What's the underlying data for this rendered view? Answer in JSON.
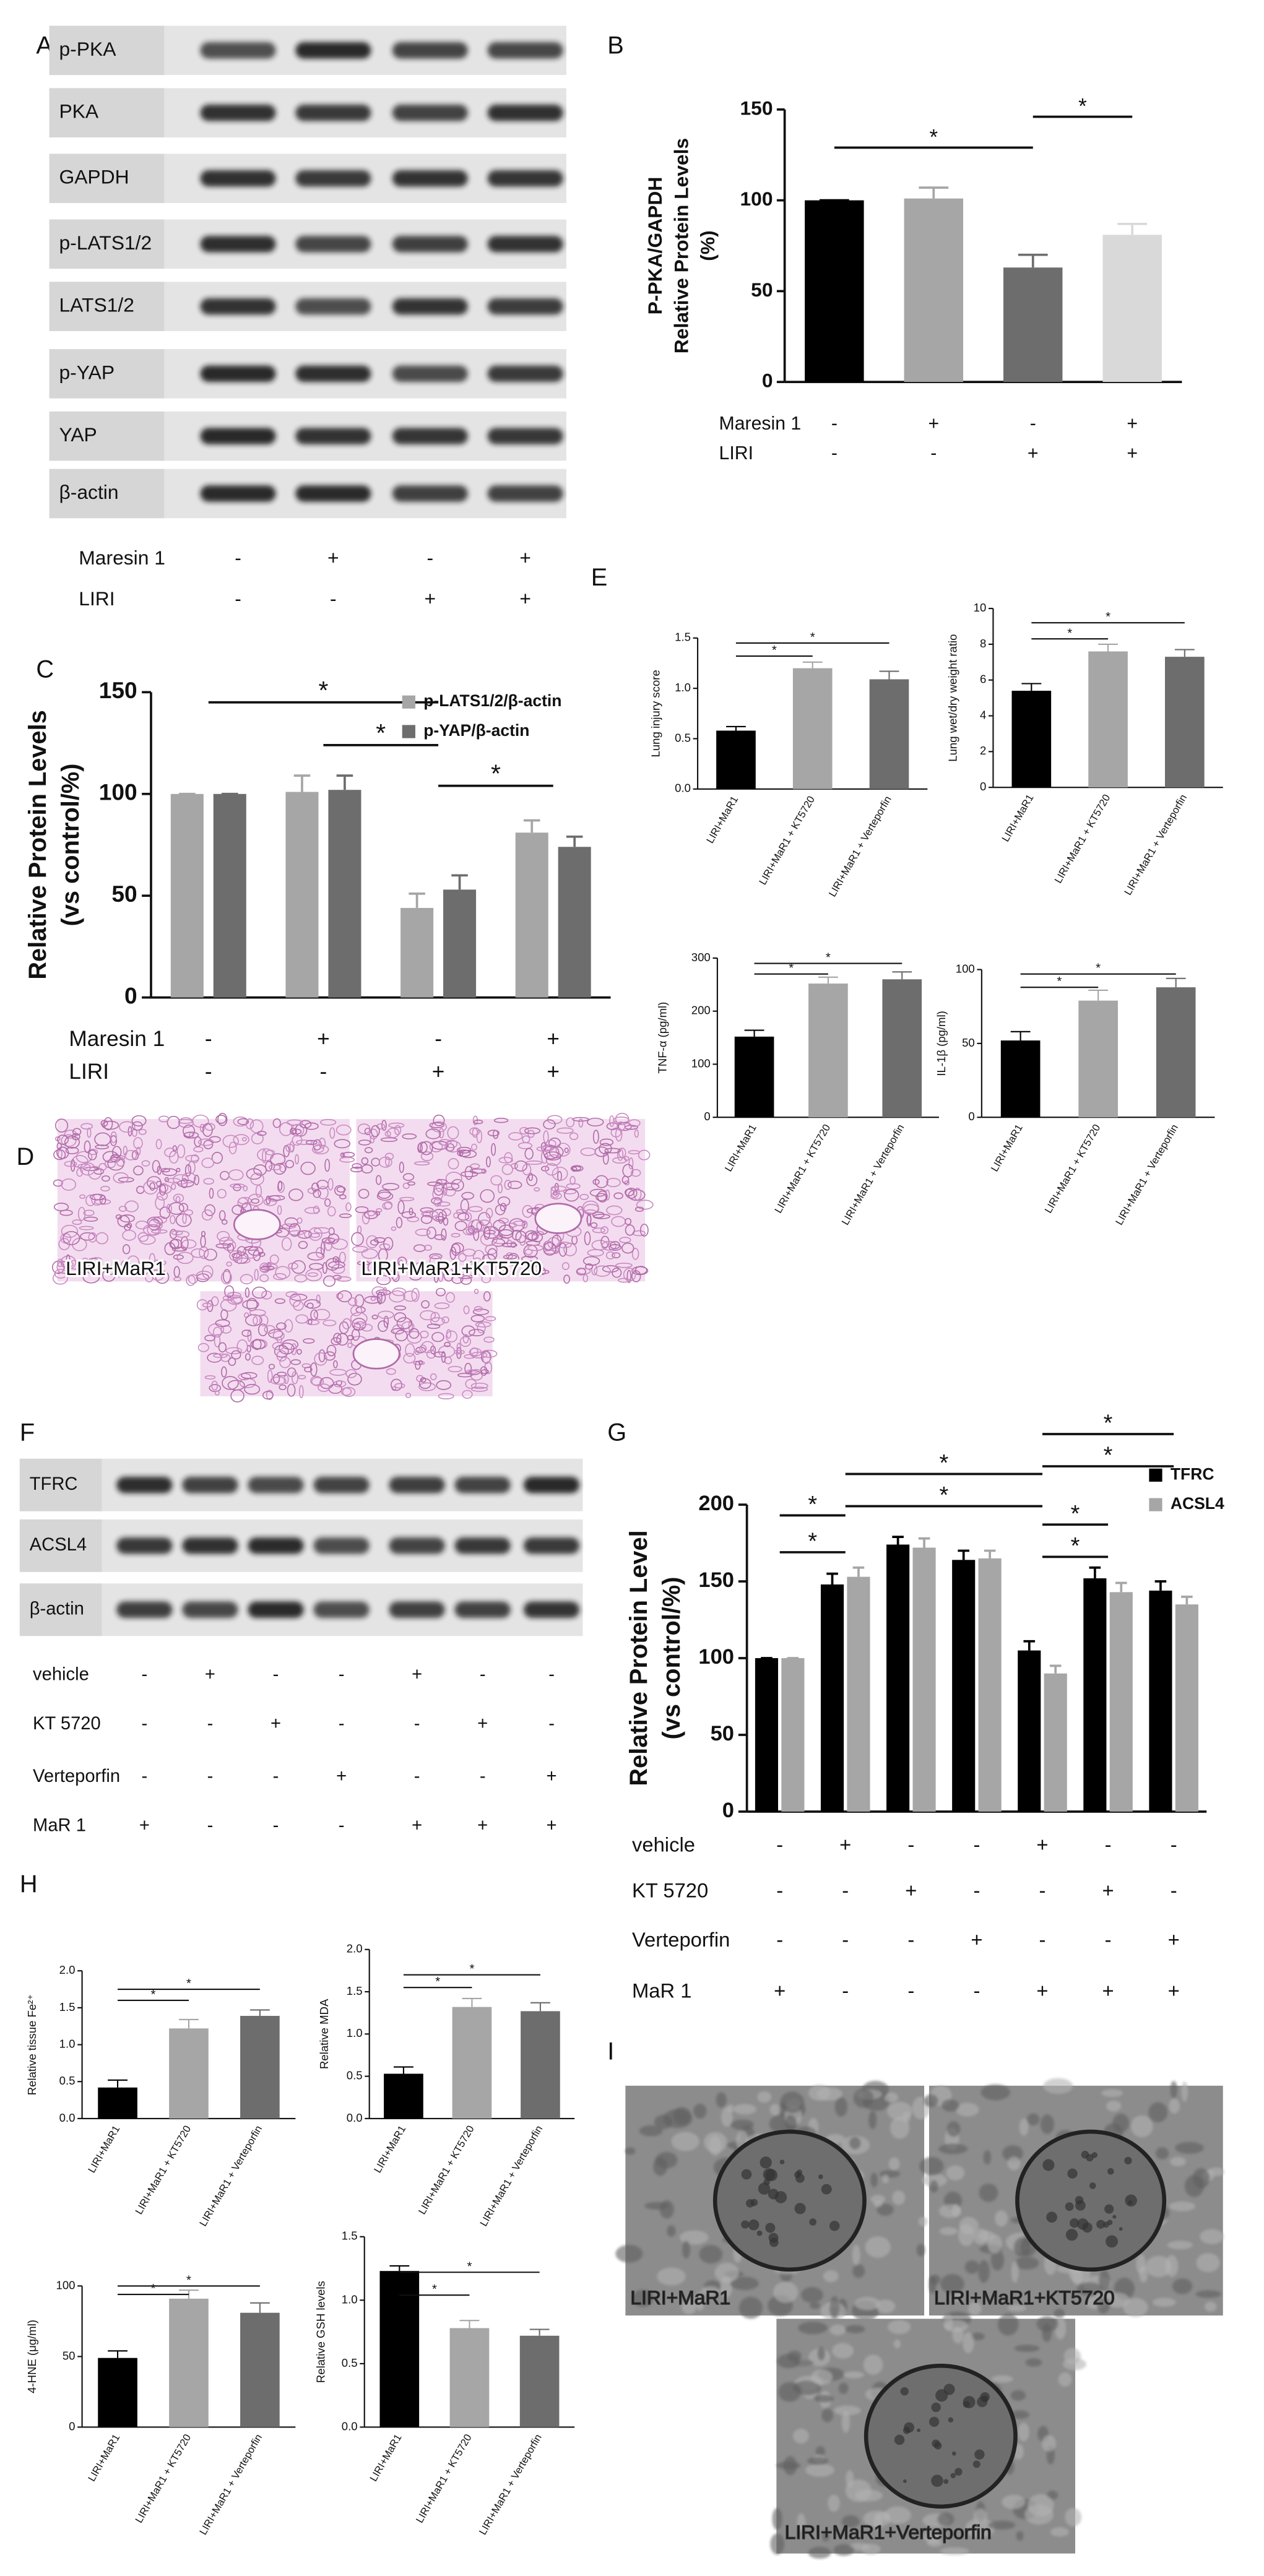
{
  "panel_labels": [
    "A",
    "B",
    "C",
    "D",
    "E",
    "F",
    "G",
    "H",
    "I"
  ],
  "blot_a": {
    "rows": [
      "p-PKA",
      "PKA",
      "GAPDH",
      "p-LATS1/2",
      "LATS1/2",
      "p-YAP",
      "YAP",
      "β-actin"
    ],
    "conditions": [
      {
        "name": "Maresin 1",
        "signs": [
          "-",
          "+",
          "-",
          "+"
        ]
      },
      {
        "name": "LIRI",
        "signs": [
          "-",
          "-",
          "+",
          "+"
        ]
      }
    ]
  },
  "blot_f": {
    "rows": [
      "TFRC",
      "ACSL4",
      "β-actin"
    ],
    "conditions": [
      {
        "name": "vehicle",
        "signs": [
          "-",
          "+",
          "-",
          "-",
          "+",
          "-",
          "-"
        ]
      },
      {
        "name": "KT 5720",
        "signs": [
          "-",
          "-",
          "+",
          "-",
          "-",
          "+",
          "-"
        ]
      },
      {
        "name": "Verteporfin",
        "signs": [
          "-",
          "-",
          "-",
          "+",
          "-",
          "-",
          "+"
        ]
      },
      {
        "name": "MaR 1",
        "signs": [
          "+",
          "-",
          "-",
          "-",
          "+",
          "+",
          "+"
        ]
      }
    ]
  },
  "micrographs_d": {
    "labels": [
      "LIRI+MaR1",
      "LIRI+MaR1+KT5720"
    ]
  },
  "micrographs_i": {
    "labels": [
      "LIRI+MaR1",
      "LIRI+MaR1+KT5720",
      "LIRI+MaR1+Verteporfin"
    ]
  },
  "chart_data": [
    {
      "type": "bar",
      "ylabel": [
        "P-PKA/GAPDH",
        "Relative Protein Levels",
        "(%)"
      ],
      "categories": [
        null,
        null,
        null,
        null
      ],
      "values": [
        100,
        101,
        63,
        81
      ],
      "errors": [
        0,
        6,
        7,
        6
      ],
      "colors": [
        "#000000",
        "#a6a6a6",
        "#6d6d6d",
        "#d9d9d9"
      ],
      "ylim": [
        0,
        150
      ],
      "yticks": [
        0,
        50,
        100,
        150
      ],
      "annotations": [
        {
          "text": "*",
          "span": [
            0,
            2
          ],
          "y": 129
        },
        {
          "text": "*",
          "span": [
            2,
            3
          ],
          "y": 146
        }
      ],
      "conditions": [
        {
          "name": "Maresin 1",
          "signs": [
            "-",
            "+",
            "-",
            "+"
          ]
        },
        {
          "name": "LIRI",
          "signs": [
            "-",
            "-",
            "+",
            "+"
          ]
        }
      ]
    },
    {
      "type": "bar",
      "ylabel": [
        "Relative Protein Levels",
        "(vs control/%)"
      ],
      "categories": [
        null,
        null,
        null,
        null
      ],
      "series": [
        {
          "name": "p-LATS1/2/β-actin",
          "color": "#a6a6a6",
          "values": [
            100,
            101,
            44,
            81
          ],
          "errors": [
            0,
            8,
            7,
            6
          ]
        },
        {
          "name": "p-YAP/β-actin",
          "color": "#6d6d6d",
          "values": [
            100,
            102,
            53,
            74
          ],
          "errors": [
            0,
            7,
            7,
            5
          ]
        }
      ],
      "legend": "upper right",
      "ylim": [
        0,
        150
      ],
      "yticks": [
        0,
        50,
        100,
        150
      ],
      "annotations": [
        {
          "text": "*",
          "span": [
            0,
            2
          ],
          "y": 145
        },
        {
          "text": "*",
          "span": [
            1,
            2
          ],
          "y": 124
        },
        {
          "text": "*",
          "span": [
            2,
            3
          ],
          "y": 104
        }
      ],
      "conditions": [
        {
          "name": "Maresin 1",
          "signs": [
            "-",
            "+",
            "-",
            "+"
          ]
        },
        {
          "name": "LIRI",
          "signs": [
            "-",
            "-",
            "+",
            "+"
          ]
        }
      ]
    },
    {
      "type": "bar",
      "ylabel": "Lung injury score",
      "categories": [
        "LIRI+MaR1",
        "LIRI+MaR1 + KT5720",
        "LIRI+MaR1 + Verteporfin"
      ],
      "values": [
        0.58,
        1.2,
        1.09
      ],
      "errors": [
        0.04,
        0.06,
        0.08
      ],
      "colors": [
        "#000000",
        "#a6a6a6",
        "#6d6d6d"
      ],
      "ylim": [
        0,
        1.5
      ],
      "yticks": [
        {
          "value": 0,
          "label": "0.0"
        },
        0.5,
        {
          "value": 1,
          "label": "1.0"
        },
        1.5
      ],
      "annotations": [
        {
          "text": "*",
          "span": [
            0,
            1
          ],
          "y": 1.32
        },
        {
          "text": "*",
          "span": [
            0,
            2
          ],
          "y": 1.45
        }
      ]
    },
    {
      "type": "bar",
      "ylabel": "Lung wet/dry weight ratio",
      "categories": [
        "LIRI+MaR1",
        "LIRI+MaR1 + KT5720",
        "LIRI+MaR1 + Verteporfin"
      ],
      "values": [
        5.4,
        7.6,
        7.3
      ],
      "errors": [
        0.4,
        0.4,
        0.4
      ],
      "colors": [
        "#000000",
        "#a6a6a6",
        "#6d6d6d"
      ],
      "ylim": [
        0,
        10
      ],
      "yticks": [
        0,
        2,
        4,
        6,
        8,
        10
      ],
      "annotations": [
        {
          "text": "*",
          "span": [
            0,
            1
          ],
          "y": 8.3
        },
        {
          "text": "*",
          "span": [
            0,
            2
          ],
          "y": 9.2
        }
      ]
    },
    {
      "type": "bar",
      "ylabel": "TNF-α (pg/ml)",
      "categories": [
        "LIRI+MaR1",
        "LIRI+MaR1 + KT5720",
        "LIRI+MaR1 + Verteporfin"
      ],
      "values": [
        152,
        252,
        260
      ],
      "errors": [
        12,
        12,
        14
      ],
      "colors": [
        "#000000",
        "#a6a6a6",
        "#6d6d6d"
      ],
      "ylim": [
        0,
        300
      ],
      "yticks": [
        0,
        100,
        200,
        300
      ],
      "annotations": [
        {
          "text": "*",
          "span": [
            0,
            1
          ],
          "y": 270
        },
        {
          "text": "*",
          "span": [
            0,
            2
          ],
          "y": 290
        }
      ]
    },
    {
      "type": "bar",
      "ylabel": "IL-1β (pg/ml)",
      "categories": [
        "LIRI+MaR1",
        "LIRI+MaR1 + KT5720",
        "LIRI+MaR1 + Verteporfin"
      ],
      "values": [
        52,
        79,
        88
      ],
      "errors": [
        6,
        7,
        6
      ],
      "colors": [
        "#000000",
        "#a6a6a6",
        "#6d6d6d"
      ],
      "ylim": [
        0,
        100
      ],
      "yticks": [
        0,
        50,
        100
      ],
      "annotations": [
        {
          "text": "*",
          "span": [
            0,
            1
          ],
          "y": 88
        },
        {
          "text": "*",
          "span": [
            0,
            2
          ],
          "y": 97
        }
      ]
    },
    {
      "type": "bar",
      "ylabel": [
        "Relative Protein Level",
        "(vs control/%)"
      ],
      "categories": [
        null,
        null,
        null,
        null,
        null,
        null,
        null
      ],
      "series": [
        {
          "name": "TFRC",
          "color": "#000000",
          "values": [
            100,
            148,
            174,
            164,
            105,
            152,
            144
          ],
          "errors": [
            0,
            7,
            5,
            6,
            6,
            7,
            6
          ]
        },
        {
          "name": "ACSL4",
          "color": "#a6a6a6",
          "values": [
            100,
            153,
            172,
            165,
            90,
            143,
            135
          ],
          "errors": [
            0,
            6,
            6,
            5,
            5,
            6,
            5
          ]
        }
      ],
      "legend": "upper right",
      "ylim": [
        0,
        200
      ],
      "yticks": [
        0,
        50,
        100,
        150,
        200
      ],
      "annotations": [
        {
          "text": "*",
          "span": [
            0,
            1
          ],
          "y": 169
        },
        {
          "text": "*",
          "span": [
            0,
            1
          ],
          "y": 193
        },
        {
          "text": "*",
          "span": [
            1,
            4
          ],
          "y": 199
        },
        {
          "text": "*",
          "span": [
            1,
            4
          ],
          "y": 220
        },
        {
          "text": "*",
          "span": [
            4,
            6
          ],
          "y": 246
        },
        {
          "text": "*",
          "span": [
            4,
            6
          ],
          "y": 225
        },
        {
          "text": "*",
          "span": [
            4,
            5
          ],
          "y": 187
        },
        {
          "text": "*",
          "span": [
            4,
            5
          ],
          "y": 166
        }
      ],
      "conditions": [
        {
          "name": "vehicle",
          "signs": [
            "-",
            "+",
            "-",
            "-",
            "+",
            "-",
            "-"
          ]
        },
        {
          "name": "KT 5720",
          "signs": [
            "-",
            "-",
            "+",
            "-",
            "-",
            "+",
            "-"
          ]
        },
        {
          "name": "Verteporfin",
          "signs": [
            "-",
            "-",
            "-",
            "+",
            "-",
            "-",
            "+"
          ]
        },
        {
          "name": "MaR 1",
          "signs": [
            "+",
            "-",
            "-",
            "-",
            "+",
            "+",
            "+"
          ]
        }
      ]
    },
    {
      "type": "bar",
      "ylabel": "Relative tissue Fe²⁺",
      "categories": [
        "LIRI+MaR1",
        "LIRI+MaR1 + KT5720",
        "LIRI+MaR1 + Verteporfin"
      ],
      "values": [
        0.42,
        1.22,
        1.39
      ],
      "errors": [
        0.1,
        0.12,
        0.08
      ],
      "colors": [
        "#000000",
        "#a6a6a6",
        "#6d6d6d"
      ],
      "ylim": [
        0,
        2
      ],
      "yticks": [
        {
          "value": 0,
          "label": "0.0"
        },
        0.5,
        {
          "value": 1,
          "label": "1.0"
        },
        1.5,
        {
          "value": 2,
          "label": "2.0"
        }
      ],
      "annotations": [
        {
          "text": "*",
          "span": [
            0,
            1
          ],
          "y": 1.6
        },
        {
          "text": "*",
          "span": [
            0,
            2
          ],
          "y": 1.75
        }
      ]
    },
    {
      "type": "bar",
      "ylabel": "Relative MDA",
      "categories": [
        "LIRI+MaR1",
        "LIRI+MaR1 + KT5720",
        "LIRI+MaR1 + Verteporfin"
      ],
      "values": [
        0.53,
        1.32,
        1.27
      ],
      "errors": [
        0.08,
        0.1,
        0.1
      ],
      "colors": [
        "#000000",
        "#a6a6a6",
        "#6d6d6d"
      ],
      "ylim": [
        0,
        2
      ],
      "yticks": [
        {
          "value": 0,
          "label": "0.0"
        },
        0.5,
        {
          "value": 1,
          "label": "1.0"
        },
        1.5,
        {
          "value": 2,
          "label": "2.0"
        }
      ],
      "annotations": [
        {
          "text": "*",
          "span": [
            0,
            1
          ],
          "y": 1.55
        },
        {
          "text": "*",
          "span": [
            0,
            2
          ],
          "y": 1.7
        }
      ]
    },
    {
      "type": "bar",
      "ylabel": "4-HNE (μg/ml)",
      "categories": [
        "LIRI+MaR1",
        "LIRI+MaR1 + KT5720",
        "LIRI+MaR1 + Verteporfin"
      ],
      "values": [
        49,
        91,
        81
      ],
      "errors": [
        5,
        6,
        7
      ],
      "colors": [
        "#000000",
        "#a6a6a6",
        "#6d6d6d"
      ],
      "ylim": [
        0,
        100
      ],
      "yticks": [
        0,
        50,
        100
      ],
      "annotations": [
        {
          "text": "*",
          "span": [
            0,
            1
          ],
          "y": 94
        },
        {
          "text": "*",
          "span": [
            0,
            2
          ],
          "y": 100
        }
      ]
    },
    {
      "type": "bar",
      "ylabel": "Relative GSH levels",
      "categories": [
        "LIRI+MaR1",
        "LIRI+MaR1 + KT5720",
        "LIRI+MaR1 + Verteporfin"
      ],
      "values": [
        1.23,
        0.78,
        0.72
      ],
      "errors": [
        0.04,
        0.06,
        0.05
      ],
      "colors": [
        "#000000",
        "#a6a6a6",
        "#6d6d6d"
      ],
      "ylim": [
        0,
        1.5
      ],
      "yticks": [
        {
          "value": 0,
          "label": "0.0"
        },
        0.5,
        {
          "value": 1,
          "label": "1.0"
        },
        1.5
      ],
      "annotations": [
        {
          "text": "*",
          "span": [
            0,
            1
          ],
          "y": 1.04
        },
        {
          "text": "*",
          "span": [
            0,
            2
          ],
          "y": 1.22
        }
      ]
    }
  ]
}
